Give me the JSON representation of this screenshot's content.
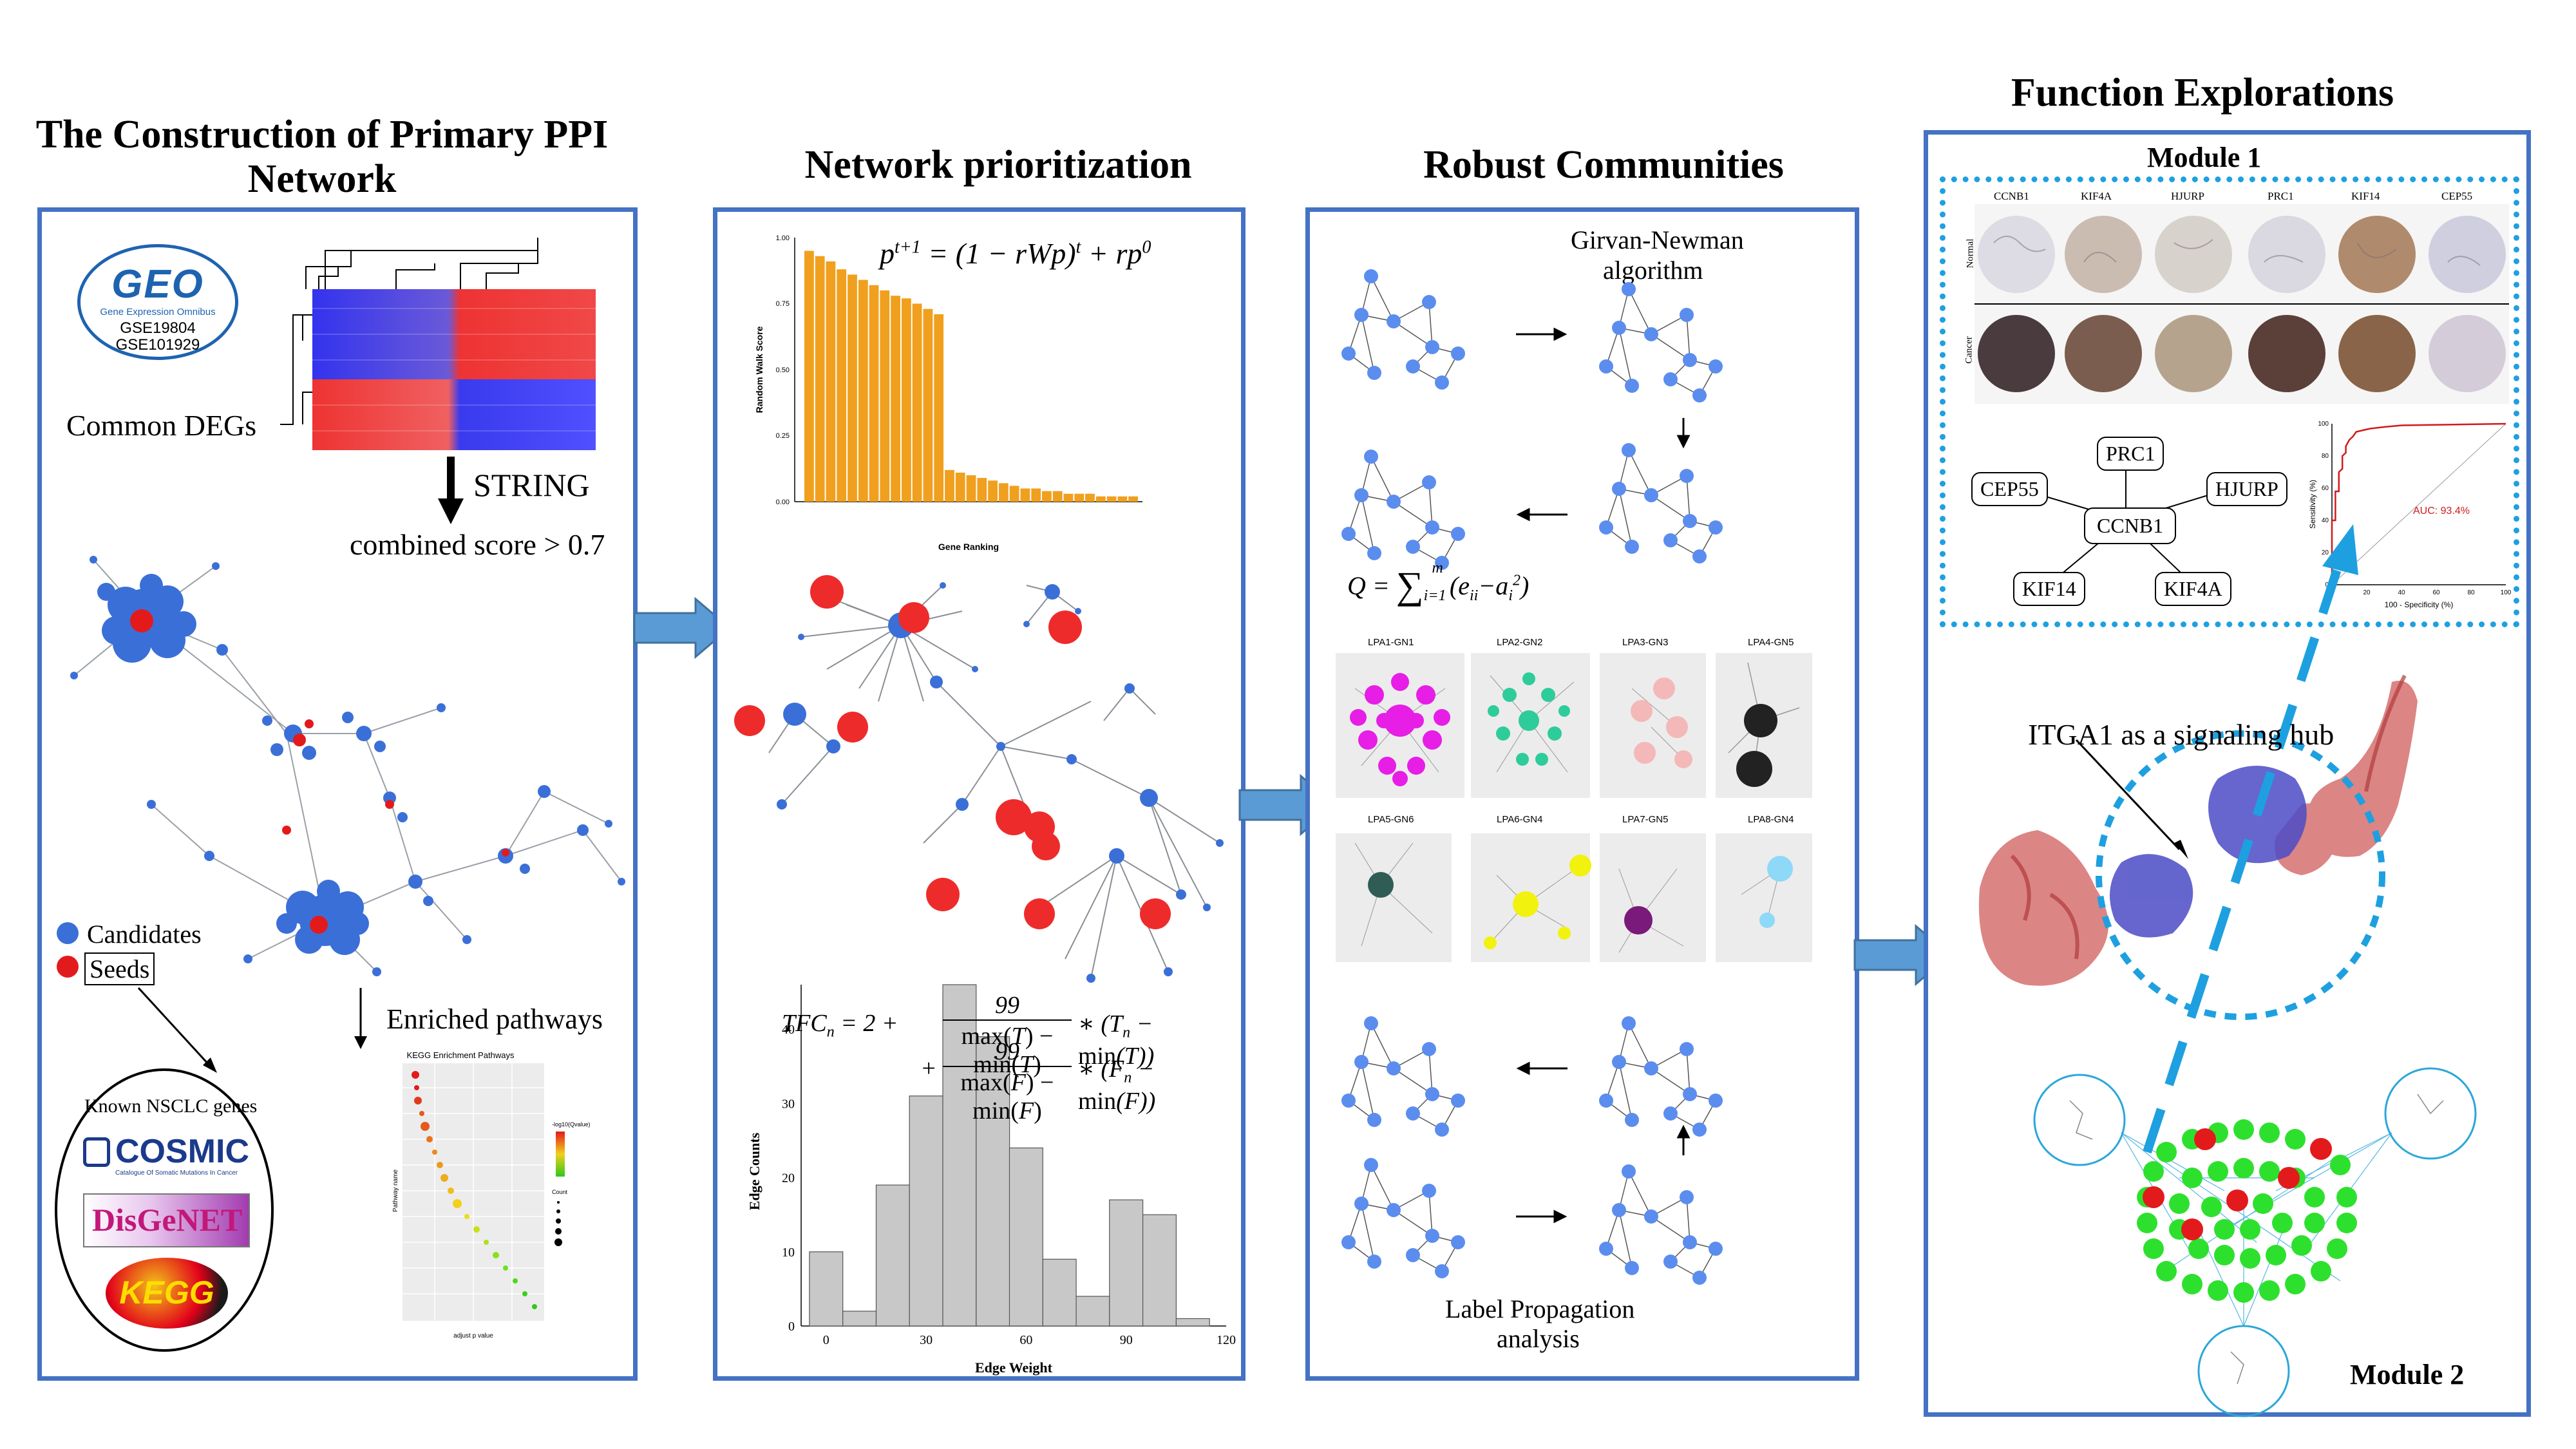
{
  "panels": {
    "p1": {
      "title": "The Construction of Primary PPI Network",
      "geo": {
        "logo": "GEO",
        "sub": "Gene Expression Omnibus",
        "gse1": "GSE19804",
        "gse2": "GSE101929"
      },
      "common_degs": "Common DEGs",
      "string": "STRING",
      "combined": "combined score > 0.7",
      "legend": {
        "candidates": "Candidates",
        "seeds": "Seeds"
      },
      "known": "Known NSCLC genes",
      "cosmic": "COSMIC",
      "cosmic_sub": "Catalogue Of Somatic Mutations In Cancer",
      "disgenet": "DisGeNET",
      "kegg": "KEGG",
      "enriched": "Enriched pathways",
      "kegg_title": "KEGG Enrichment Pathways",
      "kegg_ylabel": "Pathway name",
      "kegg_xlabel": "adjust p value",
      "kegg_legend1": "-log10(Qvalue)",
      "kegg_legend2": "Count"
    },
    "p2": {
      "title": "Network prioritization",
      "bar_ylabel": "Random Walk Score",
      "bar_xlabel": "Gene Ranking",
      "hist_ylabel": "Edge Counts",
      "hist_xlabel": "Edge Weight"
    },
    "p3": {
      "title": "Robust Communities",
      "gn_line1": "Girvan-Newman",
      "gn_line2": "algorithm",
      "lp_line1": "Label Propagation",
      "lp_line2": "analysis",
      "lpa_labels": [
        "LPA1-GN1",
        "LPA2-GN2",
        "LPA3-GN3",
        "LPA4-GN5",
        "LPA5-GN6",
        "LPA6-GN4",
        "LPA7-GN5",
        "LPA8-GN4"
      ]
    },
    "p4": {
      "title": "Function Explorations",
      "module1": "Module 1",
      "module2": "Module 2",
      "ihc_genes": [
        "CCNB1",
        "KIF4A",
        "HJURP",
        "PRC1",
        "KIF14",
        "CEP55"
      ],
      "ihc_rows": [
        "Normal",
        "Cancer"
      ],
      "hub_nodes": {
        "center": "CCNB1",
        "top": "PRC1",
        "left": "CEP55",
        "right": "HJURP",
        "bl": "KIF14",
        "br": "KIF4A"
      },
      "roc_auc": "AUC: 93.4%",
      "roc_ylabel": "Sensitivity (%)",
      "roc_xlabel": "100 - Specificity (%)",
      "itga1": "ITGA1 as a signaling hub"
    }
  },
  "chart_data": [
    {
      "type": "bar",
      "ylabel": "Random Walk Score",
      "xlabel": "Gene Ranking",
      "ylim": [
        0,
        1.0
      ],
      "color": "#f0a01e",
      "values": [
        0.95,
        0.93,
        0.91,
        0.88,
        0.86,
        0.84,
        0.82,
        0.8,
        0.78,
        0.77,
        0.75,
        0.73,
        0.71,
        0.12,
        0.11,
        0.1,
        0.09,
        0.08,
        0.07,
        0.06,
        0.05,
        0.05,
        0.04,
        0.04,
        0.03,
        0.03,
        0.03,
        0.02,
        0.02,
        0.02,
        0.02
      ]
    },
    {
      "type": "bar",
      "ylabel": "Edge Counts",
      "xlabel": "Edge Weight",
      "xlim": [
        -7.5,
        120
      ],
      "ylim": [
        0,
        46
      ],
      "xticks": [
        0,
        30,
        60,
        90,
        120
      ],
      "yticks": [
        0,
        10,
        20,
        30,
        40
      ],
      "bin_width": 10,
      "bin_starts": [
        -5,
        5,
        15,
        25,
        35,
        45,
        55,
        65,
        75,
        85,
        95,
        105
      ],
      "values": [
        10,
        2,
        19,
        31,
        46,
        39,
        24,
        9,
        4,
        17,
        15,
        1
      ]
    },
    {
      "type": "line",
      "ylabel": "Sensitivity (%)",
      "xlabel": "100 - Specificity (%)",
      "xlim": [
        0,
        100
      ],
      "ylim": [
        0,
        100
      ],
      "auc": "AUC: 93.4%",
      "x": [
        0,
        0,
        2,
        2,
        4,
        4,
        6,
        6,
        8,
        8,
        10,
        12,
        14,
        18,
        22,
        30,
        40,
        100
      ],
      "y": [
        0,
        40,
        40,
        58,
        58,
        70,
        72,
        80,
        82,
        86,
        90,
        92,
        95,
        96,
        97,
        98,
        99,
        100
      ]
    }
  ]
}
